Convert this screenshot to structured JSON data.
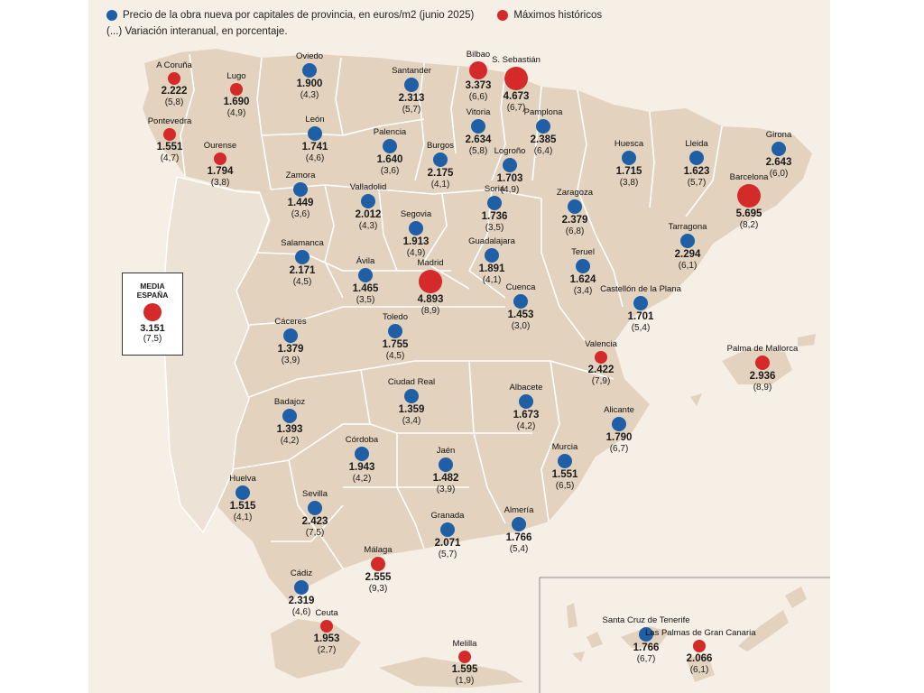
{
  "legend": {
    "blue_label": "Precio de la obra nueva por capitales de provincia, en euros/m2 (junio 2025)",
    "red_label": "Máximos históricos",
    "variation_note": "(...) Variación interanual, en porcentaje."
  },
  "colors": {
    "blue": "#1f5fa6",
    "red": "#d42a2a",
    "land": "#e3d3be",
    "border": "#ffffff",
    "sea": "#f6efe6"
  },
  "media": {
    "line1": "MEDIA",
    "line2": "ESPAÑA",
    "price": "3.151",
    "var": "(7,5)",
    "type": "red"
  },
  "cities": [
    {
      "name": "A Coruña",
      "price": "2.222",
      "var": "(5,8)",
      "type": "red",
      "size": "s"
    },
    {
      "name": "Lugo",
      "price": "1.690",
      "var": "(4,9)",
      "type": "red",
      "size": "s"
    },
    {
      "name": "Oviedo",
      "price": "1.900",
      "var": "(4,3)",
      "type": "blue",
      "size": "m"
    },
    {
      "name": "Santander",
      "price": "2.313",
      "var": "(5,7)",
      "type": "blue",
      "size": "m"
    },
    {
      "name": "Bilbao",
      "price": "3.373",
      "var": "(6,6)",
      "type": "red",
      "size": "l"
    },
    {
      "name": "S. Sebastián",
      "price": "4.673",
      "var": "(6,7)",
      "type": "red",
      "size": "xl"
    },
    {
      "name": "Pontevedra",
      "price": "1.551",
      "var": "(4,7)",
      "type": "red",
      "size": "s"
    },
    {
      "name": "León",
      "price": "1.741",
      "var": "(4,6)",
      "type": "blue",
      "size": "m"
    },
    {
      "name": "Vitoria",
      "price": "2.634",
      "var": "(5,8)",
      "type": "blue",
      "size": "m"
    },
    {
      "name": "Pamplona",
      "price": "2.385",
      "var": "(6,4)",
      "type": "blue",
      "size": "m"
    },
    {
      "name": "Ourense",
      "price": "1.794",
      "var": "(3,8)",
      "type": "red",
      "size": "s"
    },
    {
      "name": "Palencia",
      "price": "1.640",
      "var": "(3,6)",
      "type": "blue",
      "size": "m"
    },
    {
      "name": "Burgos",
      "price": "2.175",
      "var": "(4,1)",
      "type": "blue",
      "size": "m"
    },
    {
      "name": "Logroño",
      "price": "1.703",
      "var": "(4,9)",
      "type": "blue",
      "size": "m"
    },
    {
      "name": "Huesca",
      "price": "1.715",
      "var": "(3,8)",
      "type": "blue",
      "size": "m"
    },
    {
      "name": "Lleida",
      "price": "1.623",
      "var": "(5,7)",
      "type": "blue",
      "size": "m"
    },
    {
      "name": "Girona",
      "price": "2.643",
      "var": "(6,0)",
      "type": "blue",
      "size": "m"
    },
    {
      "name": "Zamora",
      "price": "1.449",
      "var": "(3,6)",
      "type": "blue",
      "size": "m"
    },
    {
      "name": "Valladolid",
      "price": "2.012",
      "var": "(4,3)",
      "type": "blue",
      "size": "m"
    },
    {
      "name": "Soria",
      "price": "1.736",
      "var": "(3,5)",
      "type": "blue",
      "size": "m"
    },
    {
      "name": "Zaragoza",
      "price": "2.379",
      "var": "(6,8)",
      "type": "blue",
      "size": "m"
    },
    {
      "name": "Barcelona",
      "price": "5.695",
      "var": "(8,2)",
      "type": "red",
      "size": "xl"
    },
    {
      "name": "Segovia",
      "price": "1.913",
      "var": "(4,9)",
      "type": "blue",
      "size": "m"
    },
    {
      "name": "Guadalajara",
      "price": "1.891",
      "var": "(4,1)",
      "type": "blue",
      "size": "m"
    },
    {
      "name": "Tarragona",
      "price": "2.294",
      "var": "(6,1)",
      "type": "blue",
      "size": "m"
    },
    {
      "name": "Salamanca",
      "price": "2.171",
      "var": "(4,5)",
      "type": "blue",
      "size": "m"
    },
    {
      "name": "Ávila",
      "price": "1.465",
      "var": "(3,5)",
      "type": "blue",
      "size": "m"
    },
    {
      "name": "Madrid",
      "price": "4.893",
      "var": "(8,9)",
      "type": "red",
      "size": "xl"
    },
    {
      "name": "Teruel",
      "price": "1.624",
      "var": "(3,4)",
      "type": "blue",
      "size": "m"
    },
    {
      "name": "Castellón de la Plana",
      "price": "1.701",
      "var": "(5,4)",
      "type": "blue",
      "size": "m"
    },
    {
      "name": "Cuenca",
      "price": "1.453",
      "var": "(3,0)",
      "type": "blue",
      "size": "m"
    },
    {
      "name": "Cáceres",
      "price": "1.379",
      "var": "(3,9)",
      "type": "blue",
      "size": "m"
    },
    {
      "name": "Toledo",
      "price": "1.755",
      "var": "(4,5)",
      "type": "blue",
      "size": "m"
    },
    {
      "name": "Valencia",
      "price": "2.422",
      "var": "(7,9)",
      "type": "red",
      "size": "s"
    },
    {
      "name": "Palma de Mallorca",
      "price": "2.936",
      "var": "(8,9)",
      "type": "red",
      "size": "m"
    },
    {
      "name": "Ciudad Real",
      "price": "1.359",
      "var": "(3,4)",
      "type": "blue",
      "size": "m"
    },
    {
      "name": "Albacete",
      "price": "1.673",
      "var": "(4,2)",
      "type": "blue",
      "size": "m"
    },
    {
      "name": "Badajoz",
      "price": "1.393",
      "var": "(4,2)",
      "type": "blue",
      "size": "m"
    },
    {
      "name": "Alicante",
      "price": "1.790",
      "var": "(6,7)",
      "type": "blue",
      "size": "m"
    },
    {
      "name": "Córdoba",
      "price": "1.943",
      "var": "(4,2)",
      "type": "blue",
      "size": "m"
    },
    {
      "name": "Jaén",
      "price": "1.482",
      "var": "(3,9)",
      "type": "blue",
      "size": "m"
    },
    {
      "name": "Murcia",
      "price": "1.551",
      "var": "(6,5)",
      "type": "blue",
      "size": "m"
    },
    {
      "name": "Huelva",
      "price": "1.515",
      "var": "(4,1)",
      "type": "blue",
      "size": "m"
    },
    {
      "name": "Sevilla",
      "price": "2.423",
      "var": "(7,5)",
      "type": "blue",
      "size": "m"
    },
    {
      "name": "Granada",
      "price": "2.071",
      "var": "(5,7)",
      "type": "blue",
      "size": "m"
    },
    {
      "name": "Almería",
      "price": "1.766",
      "var": "(5,4)",
      "type": "blue",
      "size": "m"
    },
    {
      "name": "Málaga",
      "price": "2.555",
      "var": "(9,3)",
      "type": "red",
      "size": "m"
    },
    {
      "name": "Cádiz",
      "price": "2.319",
      "var": "(4,6)",
      "type": "blue",
      "size": "m"
    },
    {
      "name": "Ceuta",
      "price": "1.953",
      "var": "(2,7)",
      "type": "red",
      "size": "s"
    },
    {
      "name": "Melilla",
      "price": "1.595",
      "var": "(1,9)",
      "type": "red",
      "size": "s"
    },
    {
      "name": "Santa Cruz de Tenerife",
      "price": "1.766",
      "var": "(6,7)",
      "type": "blue",
      "size": "m"
    },
    {
      "name": "Las Palmas de Gran Canaria",
      "price": "2.066",
      "var": "(6,1)",
      "type": "red",
      "size": "s"
    }
  ]
}
